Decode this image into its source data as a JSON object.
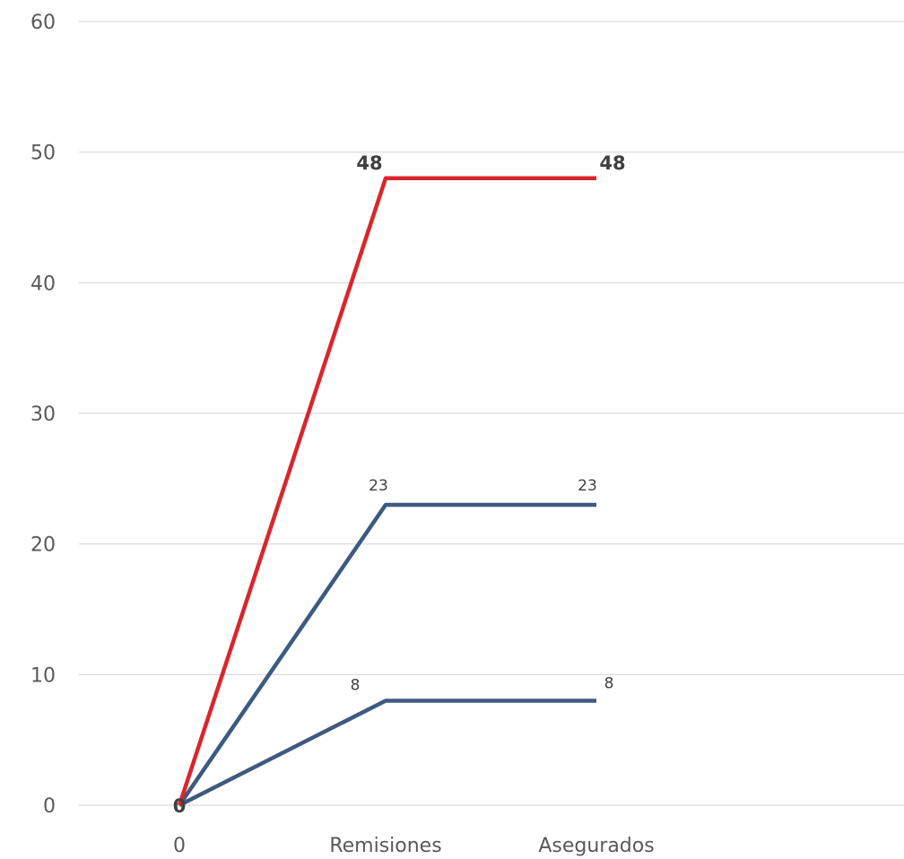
{
  "chart_data": {
    "type": "line",
    "categories": [
      "0",
      "Remisiones",
      "Asegurados"
    ],
    "ylim": [
      0,
      60
    ],
    "yticks": [
      0,
      10,
      20,
      30,
      40,
      50,
      60
    ],
    "grid": true,
    "legend": "none",
    "series": [
      {
        "values": [
          0,
          48,
          48
        ],
        "color": "#d9262c",
        "labels": [
          "0",
          "48",
          "48"
        ],
        "bold": true
      },
      {
        "values": [
          0,
          23,
          23
        ],
        "color": "#3d5a80",
        "labels": [
          "",
          "23",
          "23"
        ],
        "bold": false
      },
      {
        "values": [
          0,
          8,
          8
        ],
        "color": "#3d5a80",
        "labels": [
          "",
          "8",
          "8"
        ],
        "bold": false
      }
    ]
  }
}
